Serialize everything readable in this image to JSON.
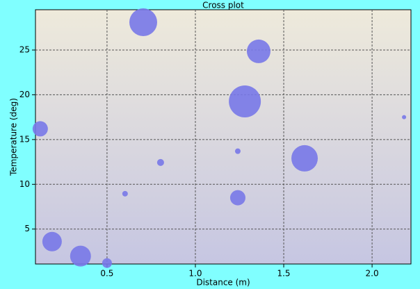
{
  "chart_data": {
    "type": "scatter",
    "title": "Cross plot",
    "x_label": "Distance (m)",
    "y_label": "Temperature (deg)",
    "series": [
      {
        "color": "#7878e8",
        "x": [
          0.705,
          1.358,
          1.28,
          0.122,
          2.181,
          1.618,
          1.24,
          0.803,
          0.602,
          1.24,
          0.189,
          0.35,
          0.5
        ],
        "values": [
          28.1,
          24.85,
          19.26,
          16.2,
          17.5,
          12.9,
          13.7,
          12.44,
          8.95,
          8.5,
          3.6,
          1.98,
          1.2
        ],
        "sizes": [
          20,
          17,
          23,
          11,
          3,
          19,
          4,
          5,
          4,
          11,
          14,
          15,
          7
        ]
      }
    ],
    "xlim": [
      0.095,
      2.22
    ],
    "ylim": [
      1.1,
      29.5
    ],
    "xticks": [
      0.5,
      {
        "value": 1,
        "label": "1.0"
      },
      1.5,
      {
        "value": 2,
        "label": "2.0"
      }
    ],
    "yticks": [
      5,
      10,
      15,
      20,
      25
    ],
    "grid": true
  }
}
